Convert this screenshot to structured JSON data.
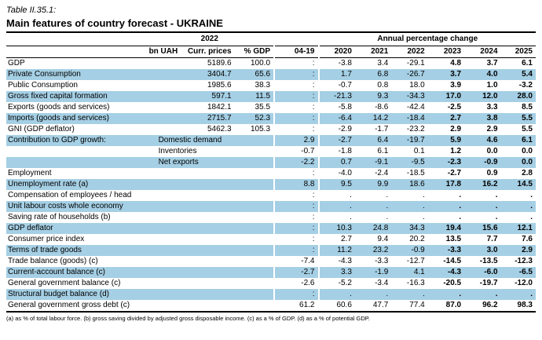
{
  "document": {
    "table_number": "Table II.35.1:",
    "title": "Main features of country forecast - UKRAINE",
    "footnote": "(a) as % of total labour force. (b) gross saving divided by adjusted gross disposable income. (c) as a % of GDP. (d) as a % of potential GDP."
  },
  "colors": {
    "row_shade": "#a5cfe4",
    "rule": "#000000"
  },
  "table": {
    "group_headers": [
      "2022",
      "Annual percentage change"
    ],
    "columns": [
      "bn UAH",
      "Curr. prices",
      "% GDP",
      "04-19",
      "2020",
      "2021",
      "2022",
      "2023",
      "2024",
      "2025"
    ],
    "rows": [
      {
        "label": "GDP",
        "curr": "5189.6",
        "pct_gdp": "100.0",
        "values": [
          ":",
          "-3.8",
          "3.4",
          "-29.1",
          "4.8",
          "3.7",
          "6.1"
        ]
      },
      {
        "label": "Private Consumption",
        "curr": "3404.7",
        "pct_gdp": "65.6",
        "values": [
          ":",
          "1.7",
          "6.8",
          "-26.7",
          "3.7",
          "4.0",
          "5.4"
        ]
      },
      {
        "label": "Public Consumption",
        "curr": "1985.6",
        "pct_gdp": "38.3",
        "values": [
          ":",
          "-0.7",
          "0.8",
          "18.0",
          "3.9",
          "1.0",
          "-3.2"
        ]
      },
      {
        "label": "Gross fixed capital formation",
        "curr": "597.1",
        "pct_gdp": "11.5",
        "values": [
          ":",
          "-21.3",
          "9.3",
          "-34.3",
          "17.0",
          "12.0",
          "28.0"
        ]
      },
      {
        "label": "Exports (goods and services)",
        "curr": "1842.1",
        "pct_gdp": "35.5",
        "values": [
          ":",
          "-5.8",
          "-8.6",
          "-42.4",
          "-2.5",
          "3.3",
          "8.5"
        ]
      },
      {
        "label": "Imports (goods and services)",
        "curr": "2715.7",
        "pct_gdp": "52.3",
        "values": [
          ":",
          "-6.4",
          "14.2",
          "-18.4",
          "2.7",
          "3.8",
          "5.5"
        ]
      },
      {
        "label": "GNI (GDP deflator)",
        "curr": "5462.3",
        "pct_gdp": "105.3",
        "values": [
          ":",
          "-2.9",
          "-1.7",
          "-23.2",
          "2.9",
          "2.9",
          "5.5"
        ]
      },
      {
        "label": "Contribution to GDP growth:",
        "sub": "Domestic demand",
        "values": [
          "2.9",
          "-2.7",
          "6.4",
          "-19.7",
          "5.9",
          "4.6",
          "6.1"
        ]
      },
      {
        "label": "",
        "sub": "Inventories",
        "values": [
          "-0.7",
          "-1.8",
          "6.1",
          "0.1",
          "1.2",
          "0.0",
          "0.0"
        ]
      },
      {
        "label": "",
        "sub": "Net exports",
        "values": [
          "-2.2",
          "0.7",
          "-9.1",
          "-9.5",
          "-2.3",
          "-0.9",
          "0.0"
        ]
      },
      {
        "label": "Employment",
        "curr": "",
        "pct_gdp": "",
        "values": [
          ":",
          "-4.0",
          "-2.4",
          "-18.5",
          "-2.7",
          "0.9",
          "2.8"
        ]
      },
      {
        "label": "Unemployment rate (a)",
        "curr": "",
        "pct_gdp": "",
        "values": [
          "8.8",
          "9.5",
          "9.9",
          "18.6",
          "17.8",
          "16.2",
          "14.5"
        ]
      },
      {
        "label": "Compensation of employees / head",
        "curr": "",
        "pct_gdp": "",
        "values": [
          ":",
          ".",
          ".",
          ".",
          ".",
          ".",
          "."
        ]
      },
      {
        "label": "Unit labour costs whole economy",
        "curr": "",
        "pct_gdp": "",
        "values": [
          ":",
          ".",
          ".",
          ".",
          ".",
          ".",
          "."
        ]
      },
      {
        "label": "Saving rate of households (b)",
        "curr": "",
        "pct_gdp": "",
        "values": [
          ":",
          ".",
          ".",
          ".",
          ".",
          ".",
          "."
        ]
      },
      {
        "label": "GDP deflator",
        "curr": "",
        "pct_gdp": "",
        "values": [
          ":",
          "10.3",
          "24.8",
          "34.3",
          "19.4",
          "15.6",
          "12.1"
        ]
      },
      {
        "label": "Consumer price index",
        "curr": "",
        "pct_gdp": "",
        "values": [
          ":",
          "2.7",
          "9.4",
          "20.2",
          "13.5",
          "7.7",
          "7.6"
        ]
      },
      {
        "label": "Terms of trade goods",
        "curr": "",
        "pct_gdp": "",
        "values": [
          ":",
          "11.2",
          "23.2",
          "-0.9",
          "-3.3",
          "3.0",
          "2.9"
        ]
      },
      {
        "label": "Trade balance (goods) (c)",
        "curr": "",
        "pct_gdp": "",
        "values": [
          "-7.4",
          "-4.3",
          "-3.3",
          "-12.7",
          "-14.5",
          "-13.5",
          "-12.3"
        ]
      },
      {
        "label": "Current-account balance (c)",
        "curr": "",
        "pct_gdp": "",
        "values": [
          "-2.7",
          "3.3",
          "-1.9",
          "4.1",
          "-4.3",
          "-6.0",
          "-6.5"
        ]
      },
      {
        "label": "General government balance (c)",
        "curr": "",
        "pct_gdp": "",
        "values": [
          "-2.6",
          "-5.2",
          "-3.4",
          "-16.3",
          "-20.5",
          "-19.7",
          "-12.0"
        ]
      },
      {
        "label": "Structural budget balance (d)",
        "curr": "",
        "pct_gdp": "",
        "values": [
          ":",
          ".",
          ".",
          ".",
          ".",
          ".",
          "."
        ]
      },
      {
        "label": "General government gross debt (c)",
        "curr": "",
        "pct_gdp": "",
        "values": [
          "61.2",
          "60.6",
          "47.7",
          "77.4",
          "87.0",
          "96.2",
          "98.3"
        ]
      }
    ]
  }
}
